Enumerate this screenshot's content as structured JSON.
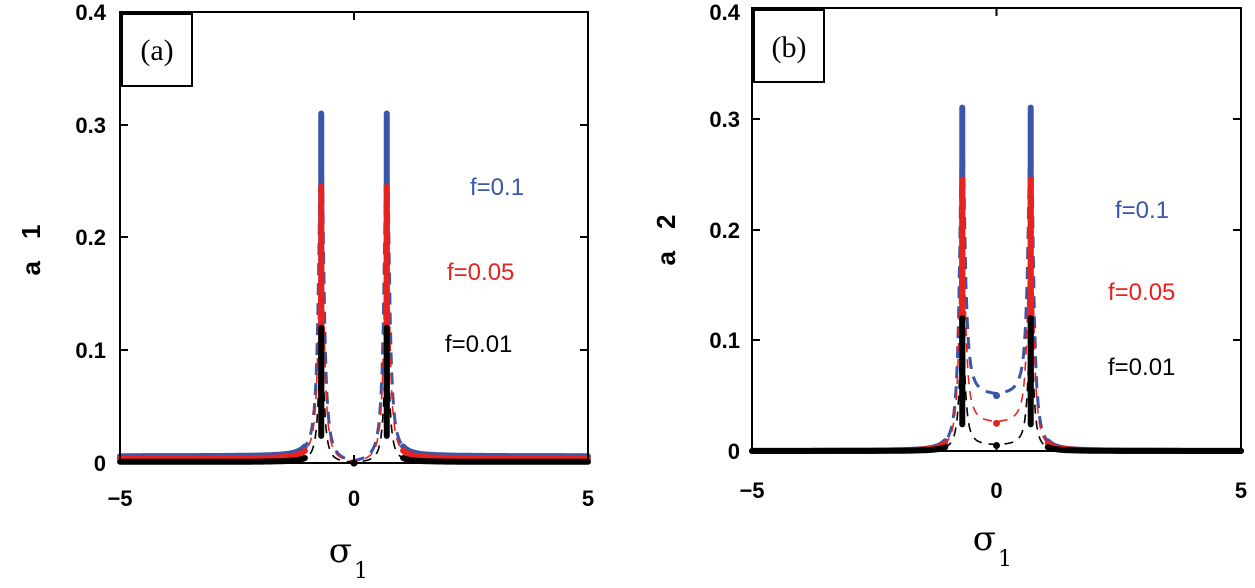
{
  "chart_data": [
    {
      "type": "line",
      "panel_label": "(a)",
      "xlabel": "σ",
      "xlabel_subscript": "1",
      "ylabel": "a",
      "ylabel_subscript": "1",
      "xlim": [
        -5,
        5
      ],
      "ylim": [
        0,
        0.4
      ],
      "xticks": [
        -5,
        0,
        5
      ],
      "xtick_labels": [
        "−5",
        "0",
        "5"
      ],
      "yticks": [
        0,
        0.1,
        0.2,
        0.3,
        0.4
      ],
      "ytick_labels": [
        "0",
        "0.1",
        "0.2",
        "0.3",
        "0.4"
      ],
      "peaks": [
        -0.7,
        0.7
      ],
      "series": [
        {
          "name": "f=0.1",
          "color": "#3a56a8",
          "peak": 0.31,
          "x_far": -5,
          "y_far": 0.006,
          "x_mid": 0,
          "y_mid": 0
        },
        {
          "name": "f=0.05",
          "color": "#e8231f",
          "peak": 0.245,
          "x_far": -5,
          "y_far": 0.004,
          "x_mid": 0,
          "y_mid": 0
        },
        {
          "name": "f=0.01",
          "color": "#000000",
          "peak": 0.12,
          "x_far": -5,
          "y_far": 0.001,
          "x_mid": 0,
          "y_mid": 0
        }
      ]
    },
    {
      "type": "line",
      "panel_label": "(b)",
      "xlabel": "σ",
      "xlabel_subscript": "1",
      "ylabel": "a",
      "ylabel_subscript": "2",
      "xlim": [
        -5,
        5
      ],
      "ylim": [
        0,
        0.4
      ],
      "xticks": [
        -5,
        0,
        5
      ],
      "xtick_labels": [
        "−5",
        "0",
        "5"
      ],
      "yticks": [
        0,
        0.1,
        0.2,
        0.3,
        0.4
      ],
      "ytick_labels": [
        "0",
        "0.1",
        "0.2",
        "0.3",
        "0.4"
      ],
      "peaks": [
        -0.7,
        0.7
      ],
      "series": [
        {
          "name": "f=0.1",
          "color": "#3a56a8",
          "peak": 0.31,
          "x_far": -5,
          "y_far": 0.0,
          "x_mid": 0,
          "y_mid": 0.05
        },
        {
          "name": "f=0.05",
          "color": "#e8231f",
          "peak": 0.245,
          "x_far": -5,
          "y_far": 0.0,
          "x_mid": 0,
          "y_mid": 0.025
        },
        {
          "name": "f=0.01",
          "color": "#000000",
          "peak": 0.12,
          "x_far": -5,
          "y_far": 0.0,
          "x_mid": 0,
          "y_mid": 0.005
        }
      ]
    }
  ]
}
